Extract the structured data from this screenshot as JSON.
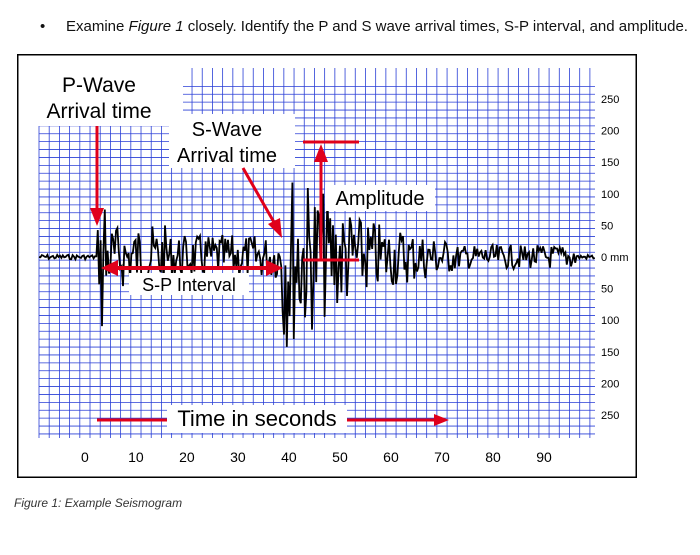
{
  "instruction": {
    "bullet": "•",
    "before": "Examine ",
    "figure_ref": "Figure 1",
    "after": " closely.  Identify the P and S wave arrival times, S-P interval, and amplitude."
  },
  "caption": "Figure 1: Example Seismogram",
  "labels": {
    "p_wave_line1": "P-Wave",
    "p_wave_line2": "Arrival time",
    "s_wave_line1": "S-Wave",
    "s_wave_line2": "Arrival time",
    "amplitude": "Amplitude",
    "sp_interval": "S-P Interval",
    "time": "Time in seconds"
  },
  "colors": {
    "grid": "#2a3fd6",
    "trace": "#000000",
    "annotation": "#e0001b",
    "label_bg": "#ffffff"
  },
  "x_axis": {
    "ticks": [
      0,
      10,
      20,
      30,
      40,
      50,
      60,
      70,
      80,
      90
    ],
    "range": [
      -9,
      100
    ]
  },
  "y_axis": {
    "ticks": [
      "250",
      "200",
      "150",
      "100",
      "50",
      "0 mm",
      "50",
      "100",
      "150",
      "200",
      "250"
    ],
    "values": [
      250,
      200,
      150,
      100,
      50,
      0,
      -50,
      -100,
      -150,
      -200,
      -250
    ]
  },
  "annotations": {
    "p_arrival_seconds": 0,
    "s_arrival_seconds": 37,
    "amplitude_mm": 180
  }
}
